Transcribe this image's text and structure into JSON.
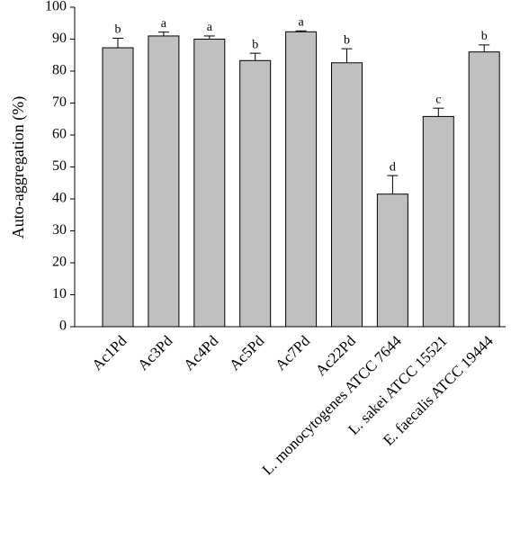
{
  "chart_data": {
    "type": "bar",
    "y_label": "Auto-aggregation (%)",
    "categories": [
      "Ac1Pd",
      "Ac3Pd",
      "Ac4Pd",
      "Ac5Pd",
      "Ac7Pd",
      "Ac22Pd",
      "L. monocytogenes ATCC 7644",
      "L. sakei ATCC 15521",
      "E. faecalis ATCC 19444"
    ],
    "values": [
      87.3,
      91,
      90,
      83.3,
      92.3,
      82.6,
      41.5,
      65.8,
      86
    ],
    "errors": [
      3,
      1.2,
      1,
      2.3,
      0.3,
      4.4,
      5.8,
      2.6,
      2.2
    ],
    "letters": [
      "b",
      "a",
      "a",
      "b",
      "a",
      "b",
      "d",
      "c",
      "b"
    ],
    "color": "#c0c0c0",
    "ylim": [
      0,
      100
    ],
    "yticks": [
      0,
      10,
      20,
      30,
      40,
      50,
      60,
      70,
      80,
      90,
      100
    ],
    "grid": false
  }
}
